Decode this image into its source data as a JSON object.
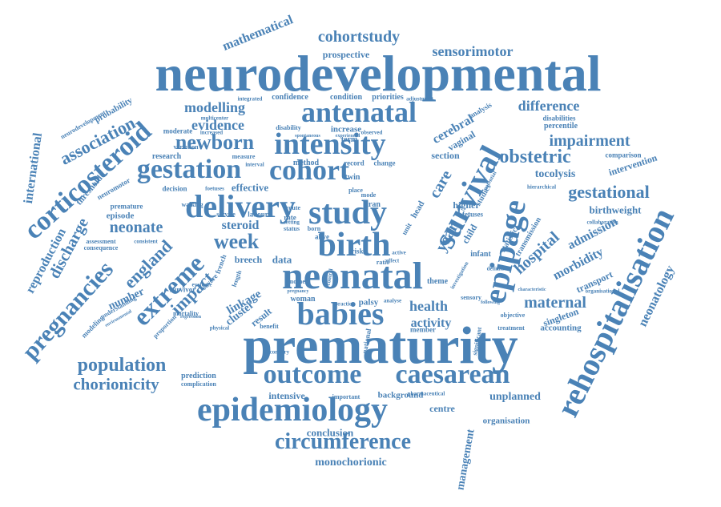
{
  "color": "#4a82b6",
  "words": [
    {
      "text": "neurodevelopmental"
    },
    {
      "text": "prematurity"
    },
    {
      "text": "rehospitalisation"
    },
    {
      "text": "epidemiology"
    },
    {
      "text": "neonatal"
    },
    {
      "text": "birth"
    },
    {
      "text": "delivery"
    },
    {
      "text": "study"
    },
    {
      "text": "survival"
    },
    {
      "text": "epipage"
    },
    {
      "text": "antenatal"
    },
    {
      "text": "intensity"
    },
    {
      "text": "cohort"
    },
    {
      "text": "gestation"
    },
    {
      "text": "babies"
    },
    {
      "text": "caesarean"
    },
    {
      "text": "outcome"
    },
    {
      "text": "corticosteroid"
    },
    {
      "text": "extreme"
    },
    {
      "text": "circumference"
    },
    {
      "text": "pregnancies"
    },
    {
      "text": "impairment"
    },
    {
      "text": "gestational"
    },
    {
      "text": "newborn"
    },
    {
      "text": "week"
    },
    {
      "text": "population"
    },
    {
      "text": "chorionicity"
    },
    {
      "text": "obstetric"
    },
    {
      "text": "cohortstudy"
    },
    {
      "text": "sensorimotor"
    },
    {
      "text": "hospital"
    },
    {
      "text": "association"
    },
    {
      "text": "maternal"
    },
    {
      "text": "england"
    },
    {
      "text": "impact"
    },
    {
      "text": "neonate"
    },
    {
      "text": "year"
    },
    {
      "text": "care"
    },
    {
      "text": "difference"
    },
    {
      "text": "mathematical"
    },
    {
      "text": "modelling"
    },
    {
      "text": "evidence"
    },
    {
      "text": "neonatology"
    },
    {
      "text": "admission"
    },
    {
      "text": "morbidity"
    },
    {
      "text": "discharge"
    },
    {
      "text": "reproduction"
    },
    {
      "text": "international"
    },
    {
      "text": "health"
    },
    {
      "text": "activity"
    },
    {
      "text": "intensive"
    },
    {
      "text": "conclusion"
    },
    {
      "text": "monochorionic"
    },
    {
      "text": "unplanned"
    },
    {
      "text": "management"
    },
    {
      "text": "cerebral"
    },
    {
      "text": "tocolysis"
    },
    {
      "text": "birthweight"
    },
    {
      "text": "intervention"
    },
    {
      "text": "vaginal"
    },
    {
      "text": "linkage"
    },
    {
      "text": "cluster"
    },
    {
      "text": "result"
    },
    {
      "text": "number"
    },
    {
      "text": "steroid"
    },
    {
      "text": "effective"
    },
    {
      "text": "prospective"
    },
    {
      "text": "singleton"
    },
    {
      "text": "transport"
    },
    {
      "text": "accounting"
    },
    {
      "text": "organisation"
    },
    {
      "text": "background"
    },
    {
      "text": "centre"
    },
    {
      "text": "data"
    },
    {
      "text": "breech"
    },
    {
      "text": "probability"
    },
    {
      "text": "section"
    },
    {
      "text": "threshold"
    },
    {
      "text": "episode"
    },
    {
      "text": "percentile"
    },
    {
      "text": "disabilities"
    },
    {
      "text": "comparison"
    },
    {
      "text": "confidence"
    },
    {
      "text": "condition"
    },
    {
      "text": "priorities"
    },
    {
      "text": "higher"
    },
    {
      "text": "increase"
    },
    {
      "text": "analysis"
    },
    {
      "text": "method"
    },
    {
      "text": "research"
    },
    {
      "text": "record"
    },
    {
      "text": "change"
    },
    {
      "text": "prediction"
    },
    {
      "text": "complication"
    },
    {
      "text": "woman"
    },
    {
      "text": "palsy"
    },
    {
      "text": "theme"
    },
    {
      "text": "member"
    },
    {
      "text": "fetuses"
    },
    {
      "text": "child"
    },
    {
      "text": "term"
    },
    {
      "text": "twin"
    },
    {
      "text": "moderate"
    },
    {
      "text": "variation"
    },
    {
      "text": "decision"
    },
    {
      "text": "premature"
    },
    {
      "text": "labour"
    },
    {
      "text": "service"
    },
    {
      "text": "survivor"
    },
    {
      "text": "mortality"
    },
    {
      "text": "severe"
    },
    {
      "text": "transmission"
    },
    {
      "text": "statistic"
    },
    {
      "text": "infant"
    },
    {
      "text": "studies"
    },
    {
      "text": "place"
    },
    {
      "text": "mode"
    },
    {
      "text": "route"
    },
    {
      "text": "rate"
    },
    {
      "text": "alive"
    },
    {
      "text": "iran"
    },
    {
      "text": "risk"
    },
    {
      "text": "ratio"
    },
    {
      "text": "unit"
    },
    {
      "text": "head"
    },
    {
      "text": "born"
    },
    {
      "text": "status"
    },
    {
      "text": "setting"
    },
    {
      "text": "benefit"
    },
    {
      "text": "neuromotor"
    },
    {
      "text": "assessment"
    },
    {
      "text": "consequence"
    },
    {
      "text": "modeling"
    },
    {
      "text": "understanding"
    },
    {
      "text": "neurodevelopment"
    },
    {
      "text": "multicenter"
    },
    {
      "text": "integrated"
    },
    {
      "text": "adjustment"
    },
    {
      "text": "disability"
    },
    {
      "text": "measure"
    },
    {
      "text": "interval"
    },
    {
      "text": "walking"
    },
    {
      "text": "foetuses"
    },
    {
      "text": "french"
    },
    {
      "text": "length"
    },
    {
      "text": "proportion"
    },
    {
      "text": "evaluate"
    },
    {
      "text": "physical"
    },
    {
      "text": "secondary"
    },
    {
      "text": "important"
    },
    {
      "text": "national"
    },
    {
      "text": "pharmaceutical"
    },
    {
      "text": "significant"
    },
    {
      "text": "treatment"
    },
    {
      "text": "objective"
    },
    {
      "text": "definition"
    },
    {
      "text": "sensory"
    },
    {
      "text": "collaborative"
    },
    {
      "text": "organisational"
    },
    {
      "text": "hierarchical"
    },
    {
      "text": "potential"
    },
    {
      "text": "consistent"
    },
    {
      "text": "practice"
    },
    {
      "text": "analyse"
    },
    {
      "text": "effect"
    },
    {
      "text": "active"
    },
    {
      "text": "mother"
    },
    {
      "text": "control"
    },
    {
      "text": "pregnancy"
    },
    {
      "text": "environmental"
    },
    {
      "text": "regression"
    },
    {
      "text": "investigation"
    },
    {
      "text": "spontaneous"
    },
    {
      "text": "experienced"
    },
    {
      "text": "observed"
    },
    {
      "text": "increased"
    },
    {
      "text": "characteristic"
    },
    {
      "text": "following"
    }
  ]
}
